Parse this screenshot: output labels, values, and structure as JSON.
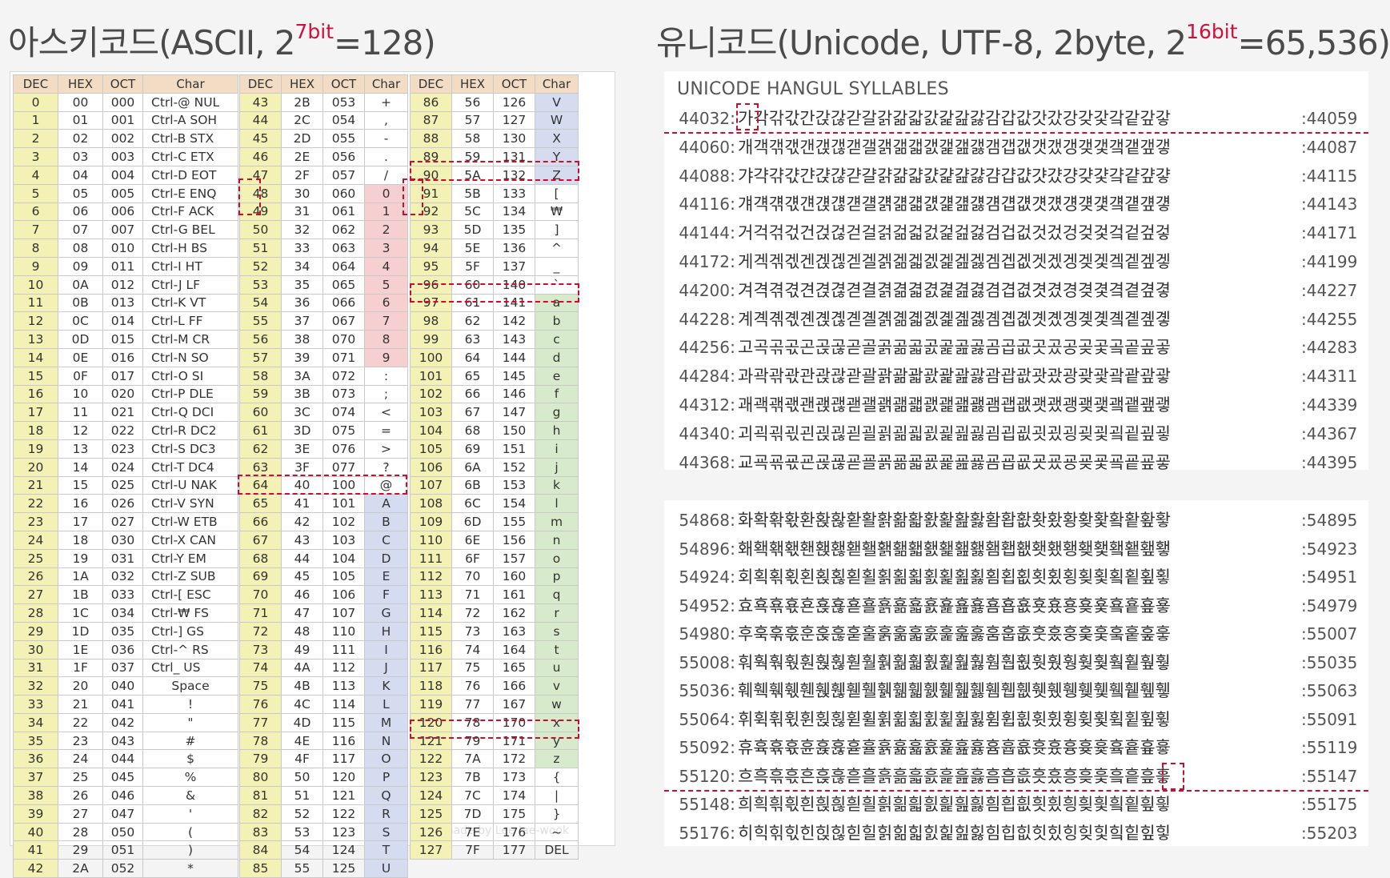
{
  "titles": {
    "ascii": {
      "main": "아스키코드(ASCII, 2",
      "sup": "7bit",
      "eq": "=128)"
    },
    "unicode": {
      "main": "유니코드(Unicode, UTF-8, 2byte, 2",
      "sup": "16bit",
      "eq": "=65,536)"
    }
  },
  "ascii_table": {
    "headers": [
      "DEC",
      "HEX",
      "OCT",
      "Char"
    ],
    "columns": [
      [
        [
          "0",
          "00",
          "000",
          "Ctrl-@  NUL"
        ],
        [
          "1",
          "01",
          "001",
          "Ctrl-A  SOH"
        ],
        [
          "2",
          "02",
          "002",
          "Ctrl-B  STX"
        ],
        [
          "3",
          "03",
          "003",
          "Ctrl-C  ETX"
        ],
        [
          "4",
          "04",
          "004",
          "Ctrl-D  EOT"
        ],
        [
          "5",
          "05",
          "005",
          "Ctrl-E  ENQ"
        ],
        [
          "6",
          "06",
          "006",
          "Ctrl-F  ACK"
        ],
        [
          "7",
          "07",
          "007",
          "Ctrl-G  BEL"
        ],
        [
          "8",
          "08",
          "010",
          "Ctrl-H  BS"
        ],
        [
          "9",
          "09",
          "011",
          "Ctrl-I  HT"
        ],
        [
          "10",
          "0A",
          "012",
          "Ctrl-J  LF"
        ],
        [
          "11",
          "0B",
          "013",
          "Ctrl-K  VT"
        ],
        [
          "12",
          "0C",
          "014",
          "Ctrl-L  FF"
        ],
        [
          "13",
          "0D",
          "015",
          "Ctrl-M  CR"
        ],
        [
          "14",
          "0E",
          "016",
          "Ctrl-N  SO"
        ],
        [
          "15",
          "0F",
          "017",
          "Ctrl-O  SI"
        ],
        [
          "16",
          "10",
          "020",
          "Ctrl-P  DLE"
        ],
        [
          "17",
          "11",
          "021",
          "Ctrl-Q  DCI"
        ],
        [
          "18",
          "12",
          "022",
          "Ctrl-R  DC2"
        ],
        [
          "19",
          "13",
          "023",
          "Ctrl-S  DC3"
        ],
        [
          "20",
          "14",
          "024",
          "Ctrl-T  DC4"
        ],
        [
          "21",
          "15",
          "025",
          "Ctrl-U  NAK"
        ],
        [
          "22",
          "16",
          "026",
          "Ctrl-V  SYN"
        ],
        [
          "23",
          "17",
          "027",
          "Ctrl-W  ETB"
        ],
        [
          "24",
          "18",
          "030",
          "Ctrl-X  CAN"
        ],
        [
          "25",
          "19",
          "031",
          "Ctrl-Y  EM"
        ],
        [
          "26",
          "1A",
          "032",
          "Ctrl-Z  SUB"
        ],
        [
          "27",
          "1B",
          "033",
          "Ctrl-[  ESC"
        ],
        [
          "28",
          "1C",
          "034",
          "Ctrl-₩  FS"
        ],
        [
          "29",
          "1D",
          "035",
          "Ctrl-]  GS"
        ],
        [
          "30",
          "1E",
          "036",
          "Ctrl-^  RS"
        ],
        [
          "31",
          "1F",
          "037",
          "Ctrl_  US"
        ],
        [
          "32",
          "20",
          "040",
          "Space"
        ],
        [
          "33",
          "21",
          "041",
          "!"
        ],
        [
          "34",
          "22",
          "042",
          "\""
        ],
        [
          "35",
          "23",
          "043",
          "#"
        ],
        [
          "36",
          "24",
          "044",
          "$"
        ],
        [
          "37",
          "25",
          "045",
          "%"
        ],
        [
          "38",
          "26",
          "046",
          "&"
        ],
        [
          "39",
          "27",
          "047",
          "'"
        ],
        [
          "40",
          "28",
          "050",
          "("
        ],
        [
          "41",
          "29",
          "051",
          ")"
        ],
        [
          "42",
          "2A",
          "052",
          "*"
        ]
      ],
      [
        [
          "43",
          "2B",
          "053",
          "+"
        ],
        [
          "44",
          "2C",
          "054",
          ","
        ],
        [
          "45",
          "2D",
          "055",
          "-"
        ],
        [
          "46",
          "2E",
          "056",
          "."
        ],
        [
          "47",
          "2F",
          "057",
          "/"
        ],
        [
          "48",
          "30",
          "060",
          "0"
        ],
        [
          "49",
          "31",
          "061",
          "1"
        ],
        [
          "50",
          "32",
          "062",
          "2"
        ],
        [
          "51",
          "33",
          "063",
          "3"
        ],
        [
          "52",
          "34",
          "064",
          "4"
        ],
        [
          "53",
          "35",
          "065",
          "5"
        ],
        [
          "54",
          "36",
          "066",
          "6"
        ],
        [
          "55",
          "37",
          "067",
          "7"
        ],
        [
          "56",
          "38",
          "070",
          "8"
        ],
        [
          "57",
          "39",
          "071",
          "9"
        ],
        [
          "58",
          "3A",
          "072",
          ":"
        ],
        [
          "59",
          "3B",
          "073",
          ";"
        ],
        [
          "60",
          "3C",
          "074",
          "<"
        ],
        [
          "61",
          "3D",
          "075",
          "="
        ],
        [
          "62",
          "3E",
          "076",
          ">"
        ],
        [
          "63",
          "3F",
          "077",
          "?"
        ],
        [
          "64",
          "40",
          "100",
          "@"
        ],
        [
          "65",
          "41",
          "101",
          "A"
        ],
        [
          "66",
          "42",
          "102",
          "B"
        ],
        [
          "67",
          "43",
          "103",
          "C"
        ],
        [
          "68",
          "44",
          "104",
          "D"
        ],
        [
          "69",
          "45",
          "105",
          "E"
        ],
        [
          "70",
          "46",
          "106",
          "F"
        ],
        [
          "71",
          "47",
          "107",
          "G"
        ],
        [
          "72",
          "48",
          "110",
          "H"
        ],
        [
          "73",
          "49",
          "111",
          "I"
        ],
        [
          "74",
          "4A",
          "112",
          "J"
        ],
        [
          "75",
          "4B",
          "113",
          "K"
        ],
        [
          "76",
          "4C",
          "114",
          "L"
        ],
        [
          "77",
          "4D",
          "115",
          "M"
        ],
        [
          "78",
          "4E",
          "116",
          "N"
        ],
        [
          "79",
          "4F",
          "117",
          "O"
        ],
        [
          "80",
          "50",
          "120",
          "P"
        ],
        [
          "81",
          "51",
          "121",
          "Q"
        ],
        [
          "82",
          "52",
          "122",
          "R"
        ],
        [
          "83",
          "53",
          "123",
          "S"
        ],
        [
          "84",
          "54",
          "124",
          "T"
        ],
        [
          "85",
          "55",
          "125",
          "U"
        ]
      ],
      [
        [
          "86",
          "56",
          "126",
          "V"
        ],
        [
          "87",
          "57",
          "127",
          "W"
        ],
        [
          "88",
          "58",
          "130",
          "X"
        ],
        [
          "89",
          "59",
          "131",
          "Y"
        ],
        [
          "90",
          "5A",
          "132",
          "Z"
        ],
        [
          "91",
          "5B",
          "133",
          "["
        ],
        [
          "92",
          "5C",
          "134",
          "₩"
        ],
        [
          "93",
          "5D",
          "135",
          "]"
        ],
        [
          "94",
          "5E",
          "136",
          "^"
        ],
        [
          "95",
          "5F",
          "137",
          "_"
        ],
        [
          "96",
          "60",
          "140",
          "`"
        ],
        [
          "97",
          "61",
          "141",
          "a"
        ],
        [
          "98",
          "62",
          "142",
          "b"
        ],
        [
          "99",
          "63",
          "143",
          "c"
        ],
        [
          "100",
          "64",
          "144",
          "d"
        ],
        [
          "101",
          "65",
          "145",
          "e"
        ],
        [
          "102",
          "66",
          "146",
          "f"
        ],
        [
          "103",
          "67",
          "147",
          "g"
        ],
        [
          "104",
          "68",
          "150",
          "h"
        ],
        [
          "105",
          "69",
          "151",
          "i"
        ],
        [
          "106",
          "6A",
          "152",
          "j"
        ],
        [
          "107",
          "6B",
          "153",
          "k"
        ],
        [
          "108",
          "6C",
          "154",
          "l"
        ],
        [
          "109",
          "6D",
          "155",
          "m"
        ],
        [
          "110",
          "6E",
          "156",
          "n"
        ],
        [
          "111",
          "6F",
          "157",
          "o"
        ],
        [
          "112",
          "70",
          "160",
          "p"
        ],
        [
          "113",
          "71",
          "161",
          "q"
        ],
        [
          "114",
          "72",
          "162",
          "r"
        ],
        [
          "115",
          "73",
          "163",
          "s"
        ],
        [
          "116",
          "74",
          "164",
          "t"
        ],
        [
          "117",
          "75",
          "165",
          "u"
        ],
        [
          "118",
          "76",
          "166",
          "v"
        ],
        [
          "119",
          "77",
          "167",
          "w"
        ],
        [
          "120",
          "78",
          "170",
          "x"
        ],
        [
          "121",
          "79",
          "171",
          "y"
        ],
        [
          "122",
          "7A",
          "172",
          "z"
        ],
        [
          "123",
          "7B",
          "173",
          "{"
        ],
        [
          "124",
          "7C",
          "174",
          "|"
        ],
        [
          "125",
          "7D",
          "175",
          "}"
        ],
        [
          "126",
          "7E",
          "176",
          "~"
        ],
        [
          "127",
          "7F",
          "177",
          "DEL"
        ]
      ]
    ],
    "watermark": "made by Lee Jae-wook"
  },
  "unicode": {
    "header": "UNICODE HANGUL SYLLABLES",
    "panel1_rows": [
      {
        "start": "44032",
        "chars": "가각갂갃간갅갆갇갈갉갊갋갌갍갎갏감갑값갓갔강갖갗갘같갚갛",
        "end": "44059"
      },
      {
        "start": "44060",
        "chars": "개객갞갟갠갡갢갣갤갥갦갧갨갩갪갫갬갭갮갯갰갱갲갳갴갵갶갷",
        "end": "44087"
      },
      {
        "start": "44088",
        "chars": "갸갹갺갻갼갽갾갿걀걁걂걃걄걅걆걇걈걉걊걋걌걍걎걏걐걑걒걓",
        "end": "44115"
      },
      {
        "start": "44116",
        "chars": "걔걕걖걗걘걙걚걛걜걝걞걟걠걡걢걣걤걥걦걧걨걩걪걫걬걭걮걯",
        "end": "44143"
      },
      {
        "start": "44144",
        "chars": "거걱걲걳건걵걶걷걸걹걺걻걼걽걾걿검겁겂것겄겅겆겇겈겉겊겋",
        "end": "44171"
      },
      {
        "start": "44172",
        "chars": "게겍겎겏겐겑겒겓겔겕겖겗겘겙겚겛겜겝겞겟겠겡겢겣겤겥겦겧",
        "end": "44199"
      },
      {
        "start": "44200",
        "chars": "겨격겪겫견겭겮겯결겱겲겳겴겵겶겷겸겹겺겻겼경겾겿곀곁곂곃",
        "end": "44227"
      },
      {
        "start": "44228",
        "chars": "계곅곆곇곈곉곊곋곌곍곎곏곐곑곒곓곔곕곖곗곘곙곚곛곜곝곞곟",
        "end": "44255"
      },
      {
        "start": "44256",
        "chars": "고곡곢곣곤곥곦곧골곩곪곫곬곭곮곯곰곱곲곳곴공곶곷곸곹곺곻",
        "end": "44283"
      },
      {
        "start": "44284",
        "chars": "과곽곾곿관괁괂괃괄괅괆괇괈괉괊괋괌괍괎괏괐광괒괓괔괕괖괗",
        "end": "44311"
      },
      {
        "start": "44312",
        "chars": "괘괙괚괛괜괝괞괟괠괡괢괣괤괥괦괧괨괩괪괫괬괭괮괯괰괱괲괳",
        "end": "44339"
      },
      {
        "start": "44340",
        "chars": "괴괵괶괷괸괹괺괻괼괽괾괿굀굁굂굃굄굅굆굇굈굉굊굋굌굍굎굏",
        "end": "44367"
      },
      {
        "start": "44368",
        "chars": "교굑굒굓굔굕굖굗굘굙굚굛굜굝굞굟굠굡굢굣굤굥굦굧굨굩굪굫",
        "end": "44395"
      }
    ],
    "panel2_rows": [
      {
        "start": "54868",
        "chars": "화확홖홗환홙홚홛활홝홞홟홠홡홢홣홤홥홦홧홨황홪홫홬홭홮홯",
        "end": "54895"
      },
      {
        "start": "54896",
        "chars": "홰홱홲홳홴홵홶홷홸홹홺홻홼홽홾홿횀횁횂횃횄횅횆횇횈횉횊횋",
        "end": "54923"
      },
      {
        "start": "54924",
        "chars": "회획횎횏횐횑횒횓횔횕횖횗횘횙횚횛횜횝횞횟횠횡횢횣횤횥횦횧",
        "end": "54951"
      },
      {
        "start": "54952",
        "chars": "효횩횪횫횬횭횮횯횰횱횲횳횴횵횶횷횸횹횺횻횼횽횾횿훀훁훂훃",
        "end": "54979"
      },
      {
        "start": "54980",
        "chars": "후훅훆훇훈훉훊훋훌훍훎훏훐훑훒훓훔훕훖훗훘훙훚훛훜훝훞훟",
        "end": "55007"
      },
      {
        "start": "55008",
        "chars": "훠훡훢훣훤훥훦훧훨훩훪훫훬훭훮훯훰훱훲훳훴훵훶훷훸훹훺훻",
        "end": "55035"
      },
      {
        "start": "55036",
        "chars": "훼훽훾훿휀휁휂휃휄휅휆휇휈휉휊휋휌휍휎휏휐휑휒휓휔휕휖휗",
        "end": "55063"
      },
      {
        "start": "55064",
        "chars": "휘휙휚휛휜휝휞휟휠휡휢휣휤휥휦휧휨휩휪휫휬휭휮휯휰휱휲휳",
        "end": "55091"
      },
      {
        "start": "55092",
        "chars": "휴휵휶휷휸휹휺휻휼휽휾휿흀흁흂흃흄흅흆흇흈흉흊흋흌흍흎흏",
        "end": "55119"
      },
      {
        "start": "55120",
        "chars": "흐흑흒흓흔흕흖흗흘흙흚흛흜흝흞흟흠흡흢흣흤흥흦흧흨흩흪흫",
        "end": "55147"
      },
      {
        "start": "55148",
        "chars": "희흭흮흯흰흱흲흳흴흵흶흷흸흹흺흻흼흽흾흿힀힁힂힃힄힅힆힇",
        "end": "55175"
      },
      {
        "start": "55176",
        "chars": "히힉힊힋힌힍힎힏힐힑힒힓힔힕힖힗힘힙힚힛힜힝힞힟힠힡힢힣",
        "end": "55203"
      }
    ]
  }
}
